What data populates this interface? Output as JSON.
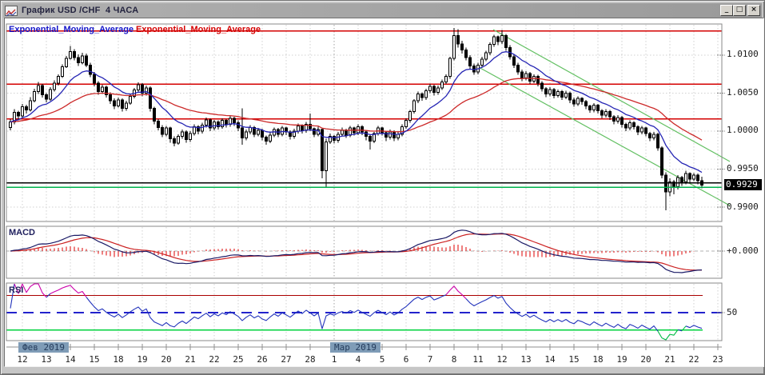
{
  "window": {
    "title": "График USD /CHF  4 ЧАСА",
    "minimize": "_",
    "maximize": "□",
    "close": "×"
  },
  "chart": {
    "ema_label_fast": "Exponential_Moving_Average",
    "ema_label_slow": "Exponential_Moving_Average",
    "macd_label": "MACD",
    "rsi_label": "RSI",
    "axis": {
      "current_price": "0.9929",
      "macd_zero_label": "+0.000",
      "rsi_mid_label": "50"
    }
  },
  "chart_data": {
    "type": "candlestick",
    "instrument": "USD/CHF",
    "timeframe_hours": 4,
    "price_base": 0.99,
    "pip": 0.0001,
    "candles_per_day": 6,
    "y_axis_prices": [
      1.01,
      1.005,
      1.0,
      0.995,
      0.99
    ],
    "current_price": 0.9929,
    "days": [
      "12",
      "13",
      "14",
      "15",
      "18",
      "19",
      "20",
      "21",
      "22",
      "25",
      "26",
      "27",
      "28",
      "1",
      "4",
      "5",
      "6",
      "7",
      "8",
      "11",
      "12",
      "13",
      "14",
      "15",
      "18",
      "19",
      "20",
      "21",
      "22",
      "23"
    ],
    "months": [
      {
        "label": "Фев 2019",
        "day_index": 0
      },
      {
        "label": "Мар 2019",
        "day_index": 13
      }
    ],
    "levels": {
      "resistance_red": [
        1.0132,
        1.0062,
        1.0016
      ],
      "line_black": 0.9932,
      "line_green": 0.9926
    },
    "trendlines": [
      {
        "i1": 120.8,
        "p1": 1.01337,
        "i2": 180,
        "p2": 0.996
      },
      {
        "i1": 116.8,
        "p1": 1.00853,
        "i2": 180,
        "p2": 0.9902
      }
    ],
    "indicators": {
      "ema_fast_period": 12,
      "ema_slow_period": 40,
      "macd": {
        "fast": 12,
        "slow": 26,
        "signal": 9
      },
      "rsi": {
        "period": 14,
        "overbought": 70,
        "mid": 50,
        "oversold": 30
      }
    },
    "colors": {
      "up_candle": "#ffffff",
      "down_candle": "#000000",
      "candle_outline": "#000000",
      "ema_fast": "#2525b4",
      "ema_slow": "#cc2a2a",
      "level_red": "#d40000",
      "line_green": "#00b34d",
      "line_black": "#000000",
      "trend_green": "#63c063",
      "macd_line": "#1a1a66",
      "macd_signal": "#cc2222",
      "macd_hist": "#dd0000",
      "macd_zero": "#b0b0b0",
      "rsi_line": "#2233bb",
      "rsi_over": "#cc00aa",
      "rsi_under": "#00bb44",
      "rsi_line70": "#aa0000",
      "rsi_line30": "#00d23c",
      "rsi_line50": "#2222cc",
      "grid": "#d0d0d0",
      "month_grid": "#a2a2a2",
      "panel_border": "#8a8a8a",
      "badge_bg": "#7f9cb7",
      "badge_text": "#253c5c",
      "price_flag_bg": "#000000",
      "price_flag_text": "#ffffff"
    },
    "ohlc_pips": [
      [
        105,
        116,
        101,
        112
      ],
      [
        112,
        129,
        109,
        125
      ],
      [
        125,
        127,
        115,
        120
      ],
      [
        120,
        136,
        117,
        132
      ],
      [
        132,
        135,
        123,
        128
      ],
      [
        128,
        145,
        126,
        140
      ],
      [
        140,
        156,
        138,
        152
      ],
      [
        152,
        165,
        149,
        160
      ],
      [
        160,
        162,
        144,
        148
      ],
      [
        148,
        150,
        138,
        142
      ],
      [
        142,
        158,
        140,
        155
      ],
      [
        155,
        167,
        152,
        163
      ],
      [
        163,
        175,
        160,
        172
      ],
      [
        172,
        188,
        170,
        185
      ],
      [
        185,
        199,
        183,
        196
      ],
      [
        196,
        212,
        194,
        205
      ],
      [
        205,
        208,
        193,
        197
      ],
      [
        197,
        201,
        186,
        190
      ],
      [
        190,
        203,
        188,
        199
      ],
      [
        199,
        202,
        184,
        187
      ],
      [
        187,
        190,
        171,
        175
      ],
      [
        175,
        178,
        159,
        163
      ],
      [
        163,
        166,
        148,
        152
      ],
      [
        152,
        161,
        149,
        158
      ],
      [
        158,
        160,
        144,
        148
      ],
      [
        148,
        151,
        136,
        140
      ],
      [
        140,
        143,
        129,
        133
      ],
      [
        133,
        144,
        131,
        141
      ],
      [
        141,
        143,
        126,
        130
      ],
      [
        130,
        140,
        127,
        137
      ],
      [
        137,
        149,
        135,
        146
      ],
      [
        146,
        157,
        143,
        154
      ],
      [
        154,
        164,
        151,
        161
      ],
      [
        161,
        163,
        146,
        150
      ],
      [
        150,
        160,
        147,
        157
      ],
      [
        157,
        159,
        126,
        130
      ],
      [
        130,
        132,
        109,
        113
      ],
      [
        113,
        116,
        101,
        105
      ],
      [
        105,
        108,
        92,
        96
      ],
      [
        96,
        107,
        93,
        104
      ],
      [
        104,
        106,
        85,
        90
      ],
      [
        90,
        93,
        80,
        84
      ],
      [
        84,
        96,
        82,
        93
      ],
      [
        93,
        102,
        90,
        99
      ],
      [
        99,
        101,
        85,
        89
      ],
      [
        89,
        100,
        86,
        97
      ],
      [
        97,
        109,
        94,
        106
      ],
      [
        106,
        108,
        96,
        100
      ],
      [
        100,
        111,
        97,
        108
      ],
      [
        108,
        118,
        105,
        115
      ],
      [
        115,
        117,
        100,
        104
      ],
      [
        104,
        115,
        101,
        112
      ],
      [
        112,
        114,
        102,
        106
      ],
      [
        106,
        117,
        103,
        114
      ],
      [
        114,
        116,
        105,
        109
      ],
      [
        109,
        120,
        106,
        117
      ],
      [
        117,
        119,
        107,
        111
      ],
      [
        111,
        114,
        100,
        104
      ],
      [
        104,
        130,
        82,
        91
      ],
      [
        91,
        102,
        88,
        99
      ],
      [
        99,
        108,
        96,
        105
      ],
      [
        105,
        107,
        92,
        96
      ],
      [
        96,
        104,
        93,
        101
      ],
      [
        101,
        103,
        88,
        92
      ],
      [
        92,
        94,
        82,
        87
      ],
      [
        87,
        98,
        84,
        95
      ],
      [
        95,
        105,
        92,
        102
      ],
      [
        102,
        104,
        92,
        96
      ],
      [
        96,
        107,
        93,
        104
      ],
      [
        104,
        106,
        95,
        99
      ],
      [
        99,
        101,
        89,
        93
      ],
      [
        93,
        103,
        90,
        100
      ],
      [
        100,
        110,
        97,
        107
      ],
      [
        107,
        109,
        97,
        101
      ],
      [
        101,
        112,
        98,
        109
      ],
      [
        109,
        123,
        100,
        103
      ],
      [
        103,
        105,
        92,
        96
      ],
      [
        96,
        106,
        93,
        102
      ],
      [
        102,
        104,
        38,
        48
      ],
      [
        48,
        90,
        27,
        86
      ],
      [
        86,
        97,
        83,
        93
      ],
      [
        93,
        95,
        84,
        88
      ],
      [
        88,
        99,
        85,
        96
      ],
      [
        96,
        105,
        93,
        101
      ],
      [
        101,
        103,
        91,
        95
      ],
      [
        95,
        107,
        92,
        104
      ],
      [
        104,
        106,
        94,
        98
      ],
      [
        98,
        109,
        95,
        106
      ],
      [
        106,
        108,
        95,
        99
      ],
      [
        99,
        101,
        88,
        93
      ],
      [
        93,
        95,
        76,
        87
      ],
      [
        87,
        99,
        84,
        97
      ],
      [
        97,
        107,
        94,
        104
      ],
      [
        104,
        106,
        94,
        98
      ],
      [
        98,
        100,
        87,
        92
      ],
      [
        92,
        102,
        89,
        99
      ],
      [
        99,
        101,
        87,
        91
      ],
      [
        91,
        99,
        88,
        96
      ],
      [
        96,
        109,
        93,
        106
      ],
      [
        106,
        117,
        103,
        114
      ],
      [
        114,
        128,
        111,
        126
      ],
      [
        126,
        142,
        123,
        140
      ],
      [
        140,
        152,
        137,
        149
      ],
      [
        149,
        151,
        140,
        144
      ],
      [
        144,
        156,
        141,
        153
      ],
      [
        153,
        162,
        150,
        159
      ],
      [
        159,
        161,
        147,
        151
      ],
      [
        151,
        160,
        148,
        157
      ],
      [
        157,
        168,
        154,
        165
      ],
      [
        165,
        175,
        162,
        172
      ],
      [
        172,
        198,
        169,
        196
      ],
      [
        196,
        236,
        193,
        226
      ],
      [
        226,
        234,
        210,
        215
      ],
      [
        215,
        219,
        202,
        207
      ],
      [
        207,
        210,
        193,
        197
      ],
      [
        197,
        200,
        182,
        186
      ],
      [
        186,
        189,
        174,
        178
      ],
      [
        178,
        190,
        175,
        187
      ],
      [
        187,
        198,
        184,
        195
      ],
      [
        195,
        206,
        192,
        203
      ],
      [
        203,
        217,
        200,
        214
      ],
      [
        214,
        227,
        211,
        224
      ],
      [
        224,
        226,
        213,
        218
      ],
      [
        218,
        233,
        215,
        226
      ],
      [
        226,
        228,
        206,
        210
      ],
      [
        210,
        213,
        194,
        198
      ],
      [
        198,
        201,
        183,
        187
      ],
      [
        187,
        190,
        174,
        178
      ],
      [
        178,
        181,
        166,
        170
      ],
      [
        170,
        179,
        167,
        176
      ],
      [
        176,
        178,
        162,
        166
      ],
      [
        166,
        175,
        163,
        172
      ],
      [
        172,
        174,
        159,
        163
      ],
      [
        163,
        166,
        152,
        156
      ],
      [
        156,
        158,
        145,
        149
      ],
      [
        149,
        158,
        146,
        155
      ],
      [
        155,
        157,
        143,
        147
      ],
      [
        147,
        155,
        144,
        152
      ],
      [
        152,
        154,
        141,
        145
      ],
      [
        145,
        153,
        142,
        150
      ],
      [
        150,
        152,
        137,
        141
      ],
      [
        141,
        144,
        132,
        136
      ],
      [
        136,
        146,
        133,
        143
      ],
      [
        143,
        145,
        135,
        139
      ],
      [
        139,
        141,
        129,
        133
      ],
      [
        133,
        135,
        124,
        128
      ],
      [
        128,
        137,
        125,
        134
      ],
      [
        134,
        136,
        123,
        127
      ],
      [
        127,
        129,
        117,
        121
      ],
      [
        121,
        129,
        118,
        126
      ],
      [
        126,
        128,
        115,
        119
      ],
      [
        119,
        121,
        109,
        113
      ],
      [
        113,
        121,
        110,
        118
      ],
      [
        118,
        120,
        105,
        109
      ],
      [
        109,
        111,
        100,
        104
      ],
      [
        104,
        114,
        101,
        111
      ],
      [
        111,
        113,
        102,
        106
      ],
      [
        106,
        108,
        95,
        99
      ],
      [
        99,
        107,
        96,
        104
      ],
      [
        104,
        106,
        93,
        97
      ],
      [
        97,
        99,
        87,
        91
      ],
      [
        91,
        99,
        88,
        96
      ],
      [
        96,
        98,
        74,
        78
      ],
      [
        78,
        80,
        38,
        42
      ],
      [
        42,
        46,
        -4,
        20
      ],
      [
        20,
        38,
        14,
        33
      ],
      [
        33,
        36,
        17,
        27
      ],
      [
        27,
        42,
        23,
        39
      ],
      [
        39,
        41,
        28,
        33
      ],
      [
        33,
        48,
        30,
        44
      ],
      [
        44,
        46,
        32,
        37
      ],
      [
        37,
        45,
        34,
        42
      ],
      [
        42,
        44,
        30,
        35
      ],
      [
        35,
        40,
        25,
        29
      ]
    ]
  }
}
